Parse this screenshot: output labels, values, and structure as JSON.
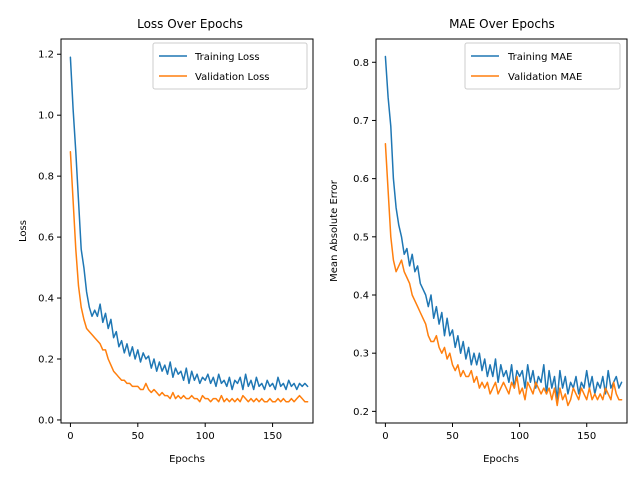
{
  "chart_data": [
    {
      "type": "line",
      "title": "Loss Over Epochs",
      "xlabel": "Epochs",
      "ylabel": "Loss",
      "xlim": [
        -7,
        180
      ],
      "ylim": [
        -0.01,
        1.25
      ],
      "xticks": [
        0,
        50,
        100,
        150
      ],
      "yticks": [
        0.0,
        0.2,
        0.4,
        0.6,
        0.8,
        1.0,
        1.2
      ],
      "ytick_decimals": 1,
      "legend": "top-right",
      "grid": false,
      "series": [
        {
          "name": "Training Loss",
          "color": "#1f77b4",
          "x": [
            0,
            2,
            4,
            6,
            8,
            10,
            12,
            14,
            16,
            18,
            20,
            22,
            24,
            26,
            28,
            30,
            32,
            34,
            36,
            38,
            40,
            42,
            44,
            46,
            48,
            50,
            52,
            54,
            56,
            58,
            60,
            62,
            64,
            66,
            68,
            70,
            72,
            74,
            76,
            78,
            80,
            82,
            84,
            86,
            88,
            90,
            92,
            94,
            96,
            98,
            100,
            102,
            104,
            106,
            108,
            110,
            112,
            114,
            116,
            118,
            120,
            122,
            124,
            126,
            128,
            130,
            132,
            134,
            136,
            138,
            140,
            142,
            144,
            146,
            148,
            150,
            152,
            154,
            156,
            158,
            160,
            162,
            164,
            166,
            168,
            170,
            172,
            174,
            176
          ],
          "y": [
            1.19,
            1.02,
            0.88,
            0.72,
            0.56,
            0.5,
            0.42,
            0.37,
            0.34,
            0.36,
            0.34,
            0.38,
            0.32,
            0.35,
            0.3,
            0.33,
            0.27,
            0.29,
            0.24,
            0.26,
            0.22,
            0.25,
            0.21,
            0.24,
            0.2,
            0.23,
            0.19,
            0.22,
            0.2,
            0.21,
            0.17,
            0.2,
            0.16,
            0.19,
            0.16,
            0.18,
            0.15,
            0.19,
            0.14,
            0.17,
            0.15,
            0.16,
            0.13,
            0.17,
            0.12,
            0.16,
            0.13,
            0.15,
            0.12,
            0.14,
            0.13,
            0.15,
            0.12,
            0.14,
            0.11,
            0.15,
            0.12,
            0.13,
            0.11,
            0.14,
            0.1,
            0.13,
            0.12,
            0.14,
            0.1,
            0.15,
            0.11,
            0.13,
            0.1,
            0.14,
            0.11,
            0.12,
            0.1,
            0.13,
            0.11,
            0.12,
            0.1,
            0.14,
            0.11,
            0.12,
            0.1,
            0.13,
            0.11,
            0.12,
            0.1,
            0.12,
            0.11,
            0.12,
            0.11
          ]
        },
        {
          "name": "Validation Loss",
          "color": "#ff7f0e",
          "x": [
            0,
            2,
            4,
            6,
            8,
            10,
            12,
            14,
            16,
            18,
            20,
            22,
            24,
            26,
            28,
            30,
            32,
            34,
            36,
            38,
            40,
            42,
            44,
            46,
            48,
            50,
            52,
            54,
            56,
            58,
            60,
            62,
            64,
            66,
            68,
            70,
            72,
            74,
            76,
            78,
            80,
            82,
            84,
            86,
            88,
            90,
            92,
            94,
            96,
            98,
            100,
            102,
            104,
            106,
            108,
            110,
            112,
            114,
            116,
            118,
            120,
            122,
            124,
            126,
            128,
            130,
            132,
            134,
            136,
            138,
            140,
            142,
            144,
            146,
            148,
            150,
            152,
            154,
            156,
            158,
            160,
            162,
            164,
            166,
            168,
            170,
            172,
            174,
            176
          ],
          "y": [
            0.88,
            0.72,
            0.56,
            0.44,
            0.37,
            0.33,
            0.3,
            0.29,
            0.28,
            0.27,
            0.26,
            0.25,
            0.23,
            0.23,
            0.2,
            0.18,
            0.16,
            0.15,
            0.14,
            0.13,
            0.13,
            0.12,
            0.12,
            0.11,
            0.11,
            0.11,
            0.1,
            0.1,
            0.12,
            0.1,
            0.09,
            0.1,
            0.09,
            0.08,
            0.09,
            0.08,
            0.08,
            0.07,
            0.09,
            0.07,
            0.08,
            0.07,
            0.08,
            0.07,
            0.07,
            0.08,
            0.07,
            0.07,
            0.06,
            0.08,
            0.07,
            0.07,
            0.06,
            0.07,
            0.07,
            0.06,
            0.08,
            0.06,
            0.07,
            0.06,
            0.07,
            0.06,
            0.07,
            0.06,
            0.08,
            0.07,
            0.06,
            0.07,
            0.06,
            0.07,
            0.06,
            0.07,
            0.06,
            0.06,
            0.07,
            0.06,
            0.06,
            0.07,
            0.06,
            0.07,
            0.06,
            0.06,
            0.07,
            0.06,
            0.07,
            0.08,
            0.07,
            0.06,
            0.06
          ]
        }
      ]
    },
    {
      "type": "line",
      "title": "MAE Over Epochs",
      "xlabel": "Epochs",
      "ylabel": "Mean Absolute Error",
      "xlim": [
        -7,
        180
      ],
      "ylim": [
        0.18,
        0.84
      ],
      "xticks": [
        0,
        50,
        100,
        150
      ],
      "yticks": [
        0.2,
        0.3,
        0.4,
        0.5,
        0.6,
        0.7,
        0.8
      ],
      "ytick_decimals": 1,
      "legend": "top-right",
      "grid": false,
      "series": [
        {
          "name": "Training MAE",
          "color": "#1f77b4",
          "x": [
            0,
            2,
            4,
            6,
            8,
            10,
            12,
            14,
            16,
            18,
            20,
            22,
            24,
            26,
            28,
            30,
            32,
            34,
            36,
            38,
            40,
            42,
            44,
            46,
            48,
            50,
            52,
            54,
            56,
            58,
            60,
            62,
            64,
            66,
            68,
            70,
            72,
            74,
            76,
            78,
            80,
            82,
            84,
            86,
            88,
            90,
            92,
            94,
            96,
            98,
            100,
            102,
            104,
            106,
            108,
            110,
            112,
            114,
            116,
            118,
            120,
            122,
            124,
            126,
            128,
            130,
            132,
            134,
            136,
            138,
            140,
            142,
            144,
            146,
            148,
            150,
            152,
            154,
            156,
            158,
            160,
            162,
            164,
            166,
            168,
            170,
            172,
            174,
            176
          ],
          "y": [
            0.81,
            0.74,
            0.69,
            0.6,
            0.55,
            0.52,
            0.5,
            0.47,
            0.48,
            0.45,
            0.47,
            0.44,
            0.45,
            0.42,
            0.41,
            0.4,
            0.38,
            0.4,
            0.36,
            0.38,
            0.35,
            0.37,
            0.33,
            0.36,
            0.33,
            0.34,
            0.31,
            0.33,
            0.3,
            0.32,
            0.29,
            0.31,
            0.28,
            0.3,
            0.28,
            0.3,
            0.27,
            0.29,
            0.26,
            0.28,
            0.26,
            0.29,
            0.25,
            0.28,
            0.26,
            0.27,
            0.25,
            0.28,
            0.24,
            0.27,
            0.26,
            0.27,
            0.24,
            0.28,
            0.25,
            0.27,
            0.24,
            0.26,
            0.25,
            0.28,
            0.23,
            0.27,
            0.24,
            0.26,
            0.22,
            0.27,
            0.24,
            0.26,
            0.23,
            0.25,
            0.24,
            0.26,
            0.23,
            0.25,
            0.24,
            0.27,
            0.24,
            0.26,
            0.23,
            0.25,
            0.24,
            0.26,
            0.23,
            0.27,
            0.24,
            0.25,
            0.26,
            0.24,
            0.25
          ]
        },
        {
          "name": "Validation MAE",
          "color": "#ff7f0e",
          "x": [
            0,
            2,
            4,
            6,
            8,
            10,
            12,
            14,
            16,
            18,
            20,
            22,
            24,
            26,
            28,
            30,
            32,
            34,
            36,
            38,
            40,
            42,
            44,
            46,
            48,
            50,
            52,
            54,
            56,
            58,
            60,
            62,
            64,
            66,
            68,
            70,
            72,
            74,
            76,
            78,
            80,
            82,
            84,
            86,
            88,
            90,
            92,
            94,
            96,
            98,
            100,
            102,
            104,
            106,
            108,
            110,
            112,
            114,
            116,
            118,
            120,
            122,
            124,
            126,
            128,
            130,
            132,
            134,
            136,
            138,
            140,
            142,
            144,
            146,
            148,
            150,
            152,
            154,
            156,
            158,
            160,
            162,
            164,
            166,
            168,
            170,
            172,
            174,
            176
          ],
          "y": [
            0.66,
            0.58,
            0.5,
            0.46,
            0.44,
            0.45,
            0.46,
            0.44,
            0.43,
            0.42,
            0.4,
            0.39,
            0.38,
            0.37,
            0.36,
            0.35,
            0.33,
            0.32,
            0.32,
            0.33,
            0.31,
            0.3,
            0.31,
            0.29,
            0.3,
            0.28,
            0.27,
            0.28,
            0.26,
            0.27,
            0.26,
            0.26,
            0.27,
            0.25,
            0.26,
            0.24,
            0.25,
            0.24,
            0.25,
            0.23,
            0.24,
            0.25,
            0.23,
            0.24,
            0.25,
            0.24,
            0.23,
            0.25,
            0.24,
            0.26,
            0.23,
            0.24,
            0.22,
            0.25,
            0.24,
            0.23,
            0.25,
            0.24,
            0.23,
            0.24,
            0.23,
            0.24,
            0.22,
            0.24,
            0.21,
            0.24,
            0.22,
            0.23,
            0.21,
            0.22,
            0.24,
            0.23,
            0.22,
            0.24,
            0.23,
            0.22,
            0.24,
            0.22,
            0.23,
            0.22,
            0.23,
            0.22,
            0.24,
            0.23,
            0.22,
            0.25,
            0.23,
            0.22,
            0.22
          ]
        }
      ]
    }
  ]
}
